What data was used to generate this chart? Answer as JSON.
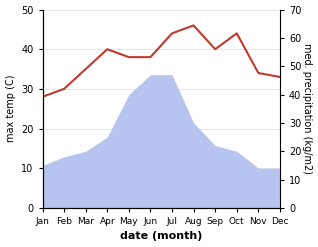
{
  "months": [
    "Jan",
    "Feb",
    "Mar",
    "Apr",
    "May",
    "Jun",
    "Jul",
    "Aug",
    "Sep",
    "Oct",
    "Nov",
    "Dec"
  ],
  "x": [
    1,
    2,
    3,
    4,
    5,
    6,
    7,
    8,
    9,
    10,
    11,
    12
  ],
  "temperature": [
    28,
    30,
    35,
    40,
    38,
    38,
    44,
    46,
    40,
    44,
    34,
    33
  ],
  "precipitation_kg": [
    15,
    18,
    20,
    25,
    40,
    47,
    47,
    30,
    22,
    20,
    14,
    14
  ],
  "temp_color": "#c0392b",
  "precip_fill_color": "#b8c4f0",
  "temp_ylim": [
    0,
    50
  ],
  "precip_ylim": [
    0,
    70
  ],
  "temp_yticks": [
    0,
    10,
    20,
    30,
    40,
    50
  ],
  "precip_yticks": [
    0,
    10,
    20,
    30,
    40,
    50,
    60,
    70
  ],
  "xlabel": "date (month)",
  "ylabel_left": "max temp (C)",
  "ylabel_right": "med. precipitation (kg/m2)",
  "bg_color": "#ffffff"
}
